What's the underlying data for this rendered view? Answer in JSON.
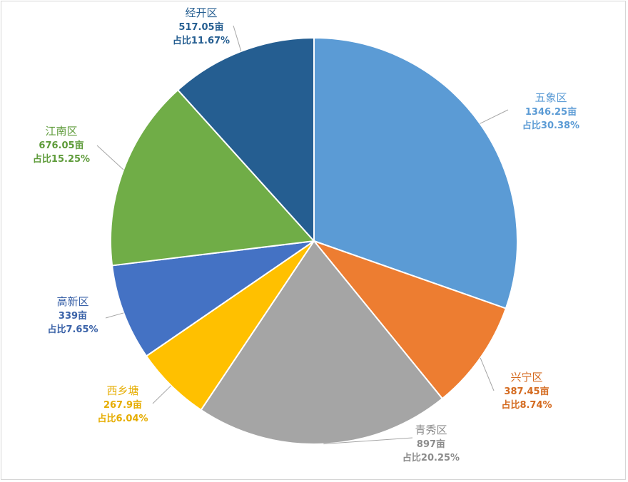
{
  "chart_data": {
    "type": "pie",
    "title": "",
    "slices": [
      {
        "name": "五象区",
        "value": 1346.25,
        "value_text": "1346.25亩",
        "pct_text": "占比30.38%",
        "color": "#5b9bd5",
        "label_color": "#5b9bd5"
      },
      {
        "name": "兴宁区",
        "value": 387.45,
        "value_text": "387.45亩",
        "pct_text": "占比8.74%",
        "color": "#ed7d31",
        "label_color": "#d46a1f"
      },
      {
        "name": "青秀区",
        "value": 897,
        "value_text": "897亩",
        "pct_text": "占比20.25%",
        "color": "#a5a5a5",
        "label_color": "#8c8c8c"
      },
      {
        "name": "西乡塘",
        "value": 267.9,
        "value_text": "267.9亩",
        "pct_text": "占比6.04%",
        "color": "#ffc000",
        "label_color": "#e6ad00"
      },
      {
        "name": "高新区",
        "value": 339,
        "value_text": "339亩",
        "pct_text": "占比7.65%",
        "color": "#4472c4",
        "label_color": "#3a62a8"
      },
      {
        "name": "江南区",
        "value": 676.05,
        "value_text": "676.05亩",
        "pct_text": "占比15.25%",
        "color": "#70ad47",
        "label_color": "#5e9b3a"
      },
      {
        "name": "经开区",
        "value": 517.05,
        "value_text": "517.05亩",
        "pct_text": "占比11.67%",
        "color": "#255e91",
        "label_color": "#255e91"
      }
    ],
    "legend": "none",
    "data_labels": "outside with leader lines"
  }
}
